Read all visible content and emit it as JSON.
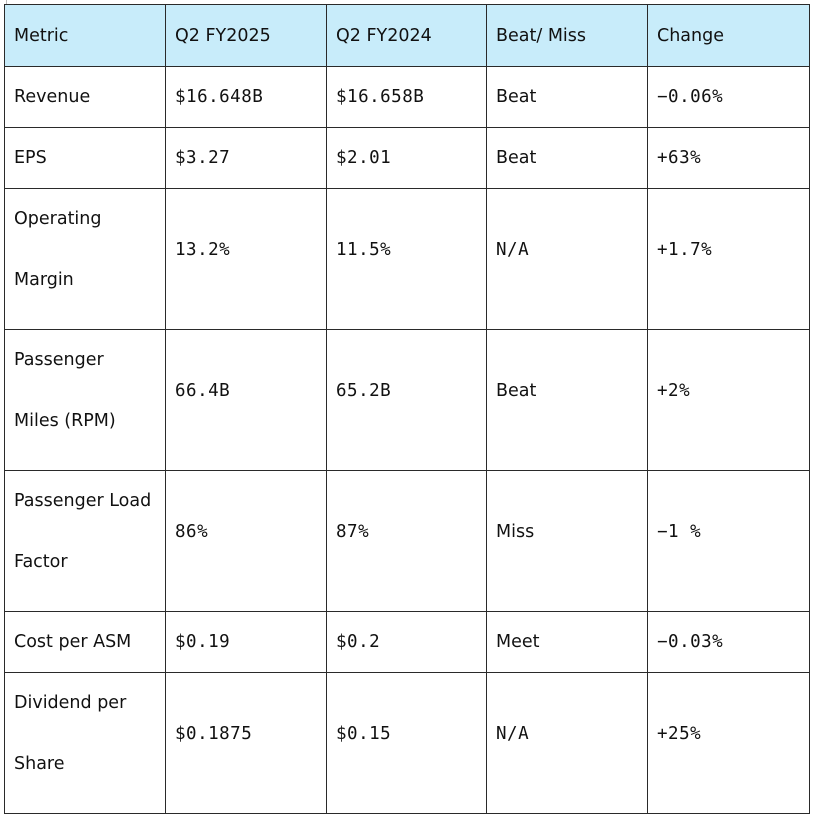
{
  "table": {
    "headers": [
      "Metric",
      "Q2 FY2025",
      "Q2 FY2024",
      "Beat/ Miss",
      "Change"
    ],
    "rows": [
      {
        "metric": [
          "Revenue"
        ],
        "fy2025": "$16.648B",
        "fy2024": "$16.658B",
        "beat_miss": "Beat",
        "change": "−0.06%"
      },
      {
        "metric": [
          "EPS"
        ],
        "fy2025": "$3.27",
        "fy2024": "$2.01",
        "beat_miss": "Beat",
        "change": "+63%"
      },
      {
        "metric": [
          "Operating",
          "Margin"
        ],
        "fy2025": "13.2%",
        "fy2024": "11.5%",
        "beat_miss": "N/A",
        "change": "+1.7%"
      },
      {
        "metric": [
          "Passenger",
          "Miles (RPM)"
        ],
        "fy2025": "66.4B",
        "fy2024": "65.2B",
        "beat_miss": "Beat",
        "change": "+2%"
      },
      {
        "metric": [
          "Passenger Load",
          "Factor"
        ],
        "fy2025": "86%",
        "fy2024": "87%",
        "beat_miss": "Miss",
        "change": "−1 %"
      },
      {
        "metric": [
          "Cost per ASM"
        ],
        "fy2025": "$0.19",
        "fy2024": "$0.2",
        "beat_miss": "Meet",
        "change": "−0.03%"
      },
      {
        "metric": [
          "Dividend per",
          "Share"
        ],
        "fy2025": "$0.1875",
        "fy2024": "$0.15",
        "beat_miss": "N/A",
        "change": "+25%"
      }
    ]
  }
}
